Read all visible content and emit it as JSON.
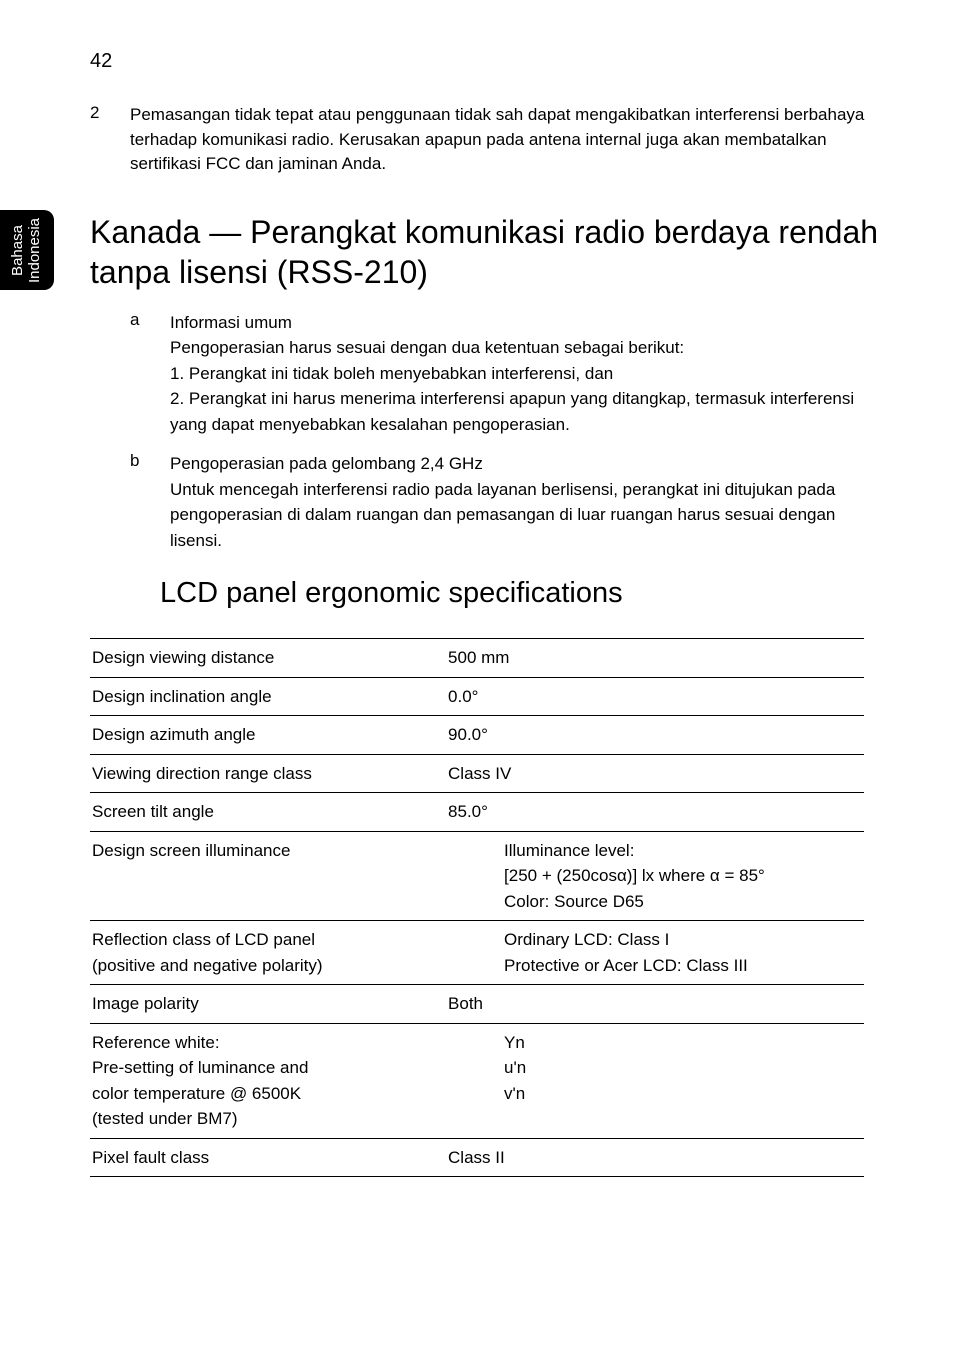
{
  "page_number": "42",
  "side_tab": "Bahasa\nIndonesia",
  "para2": {
    "num": "2",
    "text": "Pemasangan tidak tepat atau penggunaan tidak sah dapat mengakibatkan interferensi berbahaya terhadap komunikasi radio. Kerusakan apapun pada antena internal juga akan membatalkan sertifikasi FCC dan jaminan Anda."
  },
  "h1": "Kanada — Perangkat komunikasi radio berdaya rendah tanpa lisensi (RSS-210)",
  "item_a": {
    "letter": "a",
    "title": "Informasi umum",
    "l1": "Pengoperasian harus sesuai dengan dua ketentuan sebagai berikut:",
    "l2": "1. Perangkat ini tidak boleh menyebabkan interferensi, dan",
    "l3": "2. Perangkat ini harus menerima interferensi apapun yang ditangkap, termasuk interferensi yang dapat menyebabkan kesalahan pengoperasian."
  },
  "item_b": {
    "letter": "b",
    "title": "Pengoperasian pada gelombang 2,4 GHz",
    "l1": "Untuk mencegah interferensi radio pada layanan berlisensi, perangkat ini ditujukan pada pengoperasian di dalam ruangan dan pemasangan di luar ruangan harus sesuai dengan lisensi."
  },
  "h2": "LCD panel ergonomic specifications",
  "table": {
    "r1": {
      "k": "Design viewing distance",
      "v": "500 mm"
    },
    "r2": {
      "k": "Design inclination angle",
      "v": "0.0°"
    },
    "r3": {
      "k": "Design azimuth angle",
      "v": "90.0°"
    },
    "r4": {
      "k": "Viewing direction range class",
      "v": "Class IV"
    },
    "r5": {
      "k": "Screen tilt angle",
      "v": "85.0°"
    },
    "r6": {
      "k": "Design screen illuminance",
      "v1": "Illuminance level:",
      "v2": "[250 + (250cosα)] lx where α = 85°",
      "v3": "Color: Source D65"
    },
    "r7": {
      "k1": "Reflection class of LCD panel",
      "k2": "(positive and negative polarity)",
      "v1": "Ordinary LCD: Class I",
      "v2": "Protective or Acer LCD: Class III"
    },
    "r8": {
      "k": "Image polarity",
      "v": "Both"
    },
    "r9": {
      "k1": "Reference white:",
      "k2": "Pre-setting of luminance and",
      "k3": "color temperature @ 6500K",
      "k4": "(tested under BM7)",
      "v1": "Yn",
      "v2": "u'n",
      "v3": "v'n"
    },
    "r10": {
      "k": "Pixel fault class",
      "v": "Class II"
    }
  }
}
